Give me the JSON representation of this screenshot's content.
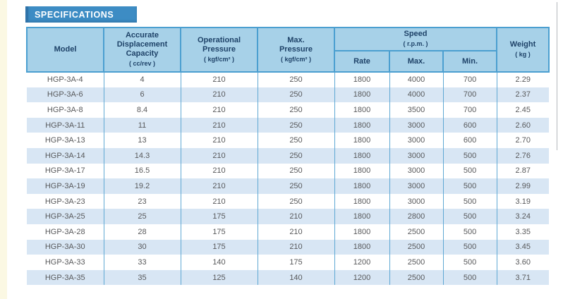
{
  "page": {
    "banner_title": "SPECIFICATIONS"
  },
  "table": {
    "columns": [
      {
        "label": "Model",
        "unit": ""
      },
      {
        "label": "Accurate\nDisplacement\nCapacity",
        "unit": "( cc/rev )"
      },
      {
        "label": "Operational\nPressure",
        "unit": "( kgf/cm² )"
      },
      {
        "label": "Max.\nPressure",
        "unit": "( kgf/cm² )"
      },
      {
        "label": "Speed",
        "unit": "( r.p.m. )",
        "subcolumns": [
          "Rate",
          "Max.",
          "Min."
        ]
      },
      {
        "label": "Weight",
        "unit": "( kg )"
      }
    ],
    "rows": [
      [
        "HGP-3A-4",
        "4",
        "210",
        "250",
        "1800",
        "4000",
        "700",
        "2.29"
      ],
      [
        "HGP-3A-6",
        "6",
        "210",
        "250",
        "1800",
        "4000",
        "700",
        "2.37"
      ],
      [
        "HGP-3A-8",
        "8.4",
        "210",
        "250",
        "1800",
        "3500",
        "700",
        "2.45"
      ],
      [
        "HGP-3A-11",
        "11",
        "210",
        "250",
        "1800",
        "3000",
        "600",
        "2.60"
      ],
      [
        "HGP-3A-13",
        "13",
        "210",
        "250",
        "1800",
        "3000",
        "600",
        "2.70"
      ],
      [
        "HGP-3A-14",
        "14.3",
        "210",
        "250",
        "1800",
        "3000",
        "500",
        "2.76"
      ],
      [
        "HGP-3A-17",
        "16.5",
        "210",
        "250",
        "1800",
        "3000",
        "500",
        "2.87"
      ],
      [
        "HGP-3A-19",
        "19.2",
        "210",
        "250",
        "1800",
        "3000",
        "500",
        "2.99"
      ],
      [
        "HGP-3A-23",
        "23",
        "210",
        "250",
        "1800",
        "3000",
        "500",
        "3.19"
      ],
      [
        "HGP-3A-25",
        "25",
        "175",
        "210",
        "1800",
        "2800",
        "500",
        "3.24"
      ],
      [
        "HGP-3A-28",
        "28",
        "175",
        "210",
        "1800",
        "2500",
        "500",
        "3.35"
      ],
      [
        "HGP-3A-30",
        "30",
        "175",
        "210",
        "1800",
        "2500",
        "500",
        "3.45"
      ],
      [
        "HGP-3A-33",
        "33",
        "140",
        "175",
        "1200",
        "2500",
        "500",
        "3.60"
      ],
      [
        "HGP-3A-35",
        "35",
        "125",
        "140",
        "1200",
        "2500",
        "500",
        "3.71"
      ]
    ]
  },
  "colors": {
    "banner_blue": "#3d8cc4",
    "header_background": "#a7d1e8",
    "header_border": "#4b9fd0",
    "header_text": "#1e4268",
    "row_stripe": "#d8e6f4",
    "data_text": "#58595b",
    "left_strip_cream": "#fbf8e3"
  }
}
